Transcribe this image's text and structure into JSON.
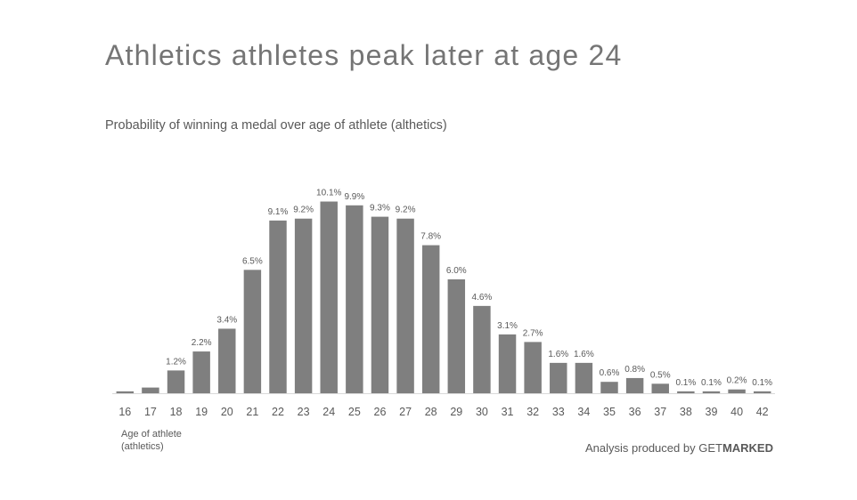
{
  "chart_data": {
    "type": "bar",
    "title": "Athletics athletes peak later at age 24",
    "subtitle": "Probability of winning a medal over age of athlete (althetics)",
    "xlabel": "Age of athlete (athletics)",
    "ylabel": "",
    "categories": [
      "16",
      "17",
      "18",
      "19",
      "20",
      "21",
      "22",
      "23",
      "24",
      "25",
      "26",
      "27",
      "28",
      "29",
      "30",
      "31",
      "32",
      "33",
      "34",
      "35",
      "36",
      "37",
      "38",
      "39",
      "40",
      "42"
    ],
    "values": [
      0.1,
      0.3,
      1.2,
      2.2,
      3.4,
      6.5,
      9.1,
      9.2,
      10.1,
      9.9,
      9.3,
      9.2,
      7.8,
      6.0,
      4.6,
      3.1,
      2.7,
      1.6,
      1.6,
      0.6,
      0.8,
      0.5,
      0.1,
      0.1,
      0.2,
      0.1
    ],
    "value_labels": [
      "",
      "",
      "1.2%",
      "2.2%",
      "3.4%",
      "6.5%",
      "9.1%",
      "9.2%",
      "10.1%",
      "9.9%",
      "9.3%",
      "9.2%",
      "7.8%",
      "6.0%",
      "4.6%",
      "3.1%",
      "2.7%",
      "1.6%",
      "1.6%",
      "0.6%",
      "0.8%",
      "0.5%",
      "0.1%",
      "0.1%",
      "0.2%",
      "0.1%"
    ],
    "ylim": [
      0,
      10.5
    ],
    "grid": false,
    "bar_color": "#7f7f7f",
    "axis_color": "#d9d9d9"
  },
  "xlabel_lines": [
    "Age of athlete",
    "(athletics)"
  ],
  "credit": {
    "prefix": "Analysis produced by ",
    "brand_get": "GET",
    "brand_marked": "MARKED"
  }
}
